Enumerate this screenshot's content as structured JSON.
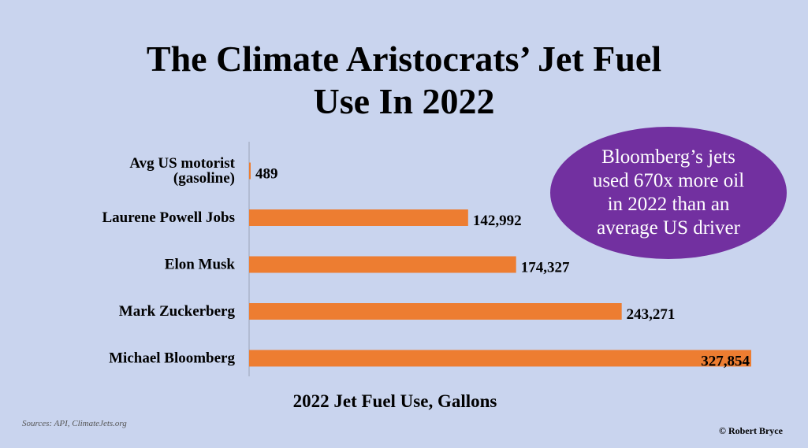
{
  "title_line1": "The Climate Aristocrats’ Jet Fuel",
  "title_line2": "Use In 2022",
  "callout_text": "Bloomberg’s jets used 670x more oil in 2022 than an average US driver",
  "source": "Sources: API,  ClimateJets.org",
  "credit": "© Robert Bryce",
  "colors": {
    "bar": "#ed7d31",
    "callout": "#7230a0",
    "background": "#c9d4ee"
  },
  "chart_data": {
    "type": "bar",
    "orientation": "horizontal",
    "title": "The Climate Aristocrats’ Jet Fuel Use In 2022",
    "xlabel": "2022 Jet Fuel Use, Gallons",
    "ylabel": "",
    "categories": [
      [
        "Avg US motorist",
        "(gasoline)"
      ],
      [
        "Laurene Powell Jobs"
      ],
      [
        "Elon Musk"
      ],
      [
        "Mark Zuckerberg"
      ],
      [
        "Michael Bloomberg"
      ]
    ],
    "values": [
      489,
      142992,
      174327,
      243271,
      327854
    ],
    "data_labels": [
      "489",
      "142,992",
      "174,327",
      "243,271",
      "327,854"
    ],
    "xlim": [
      0,
      327854
    ],
    "grid": false,
    "legend": "none"
  }
}
